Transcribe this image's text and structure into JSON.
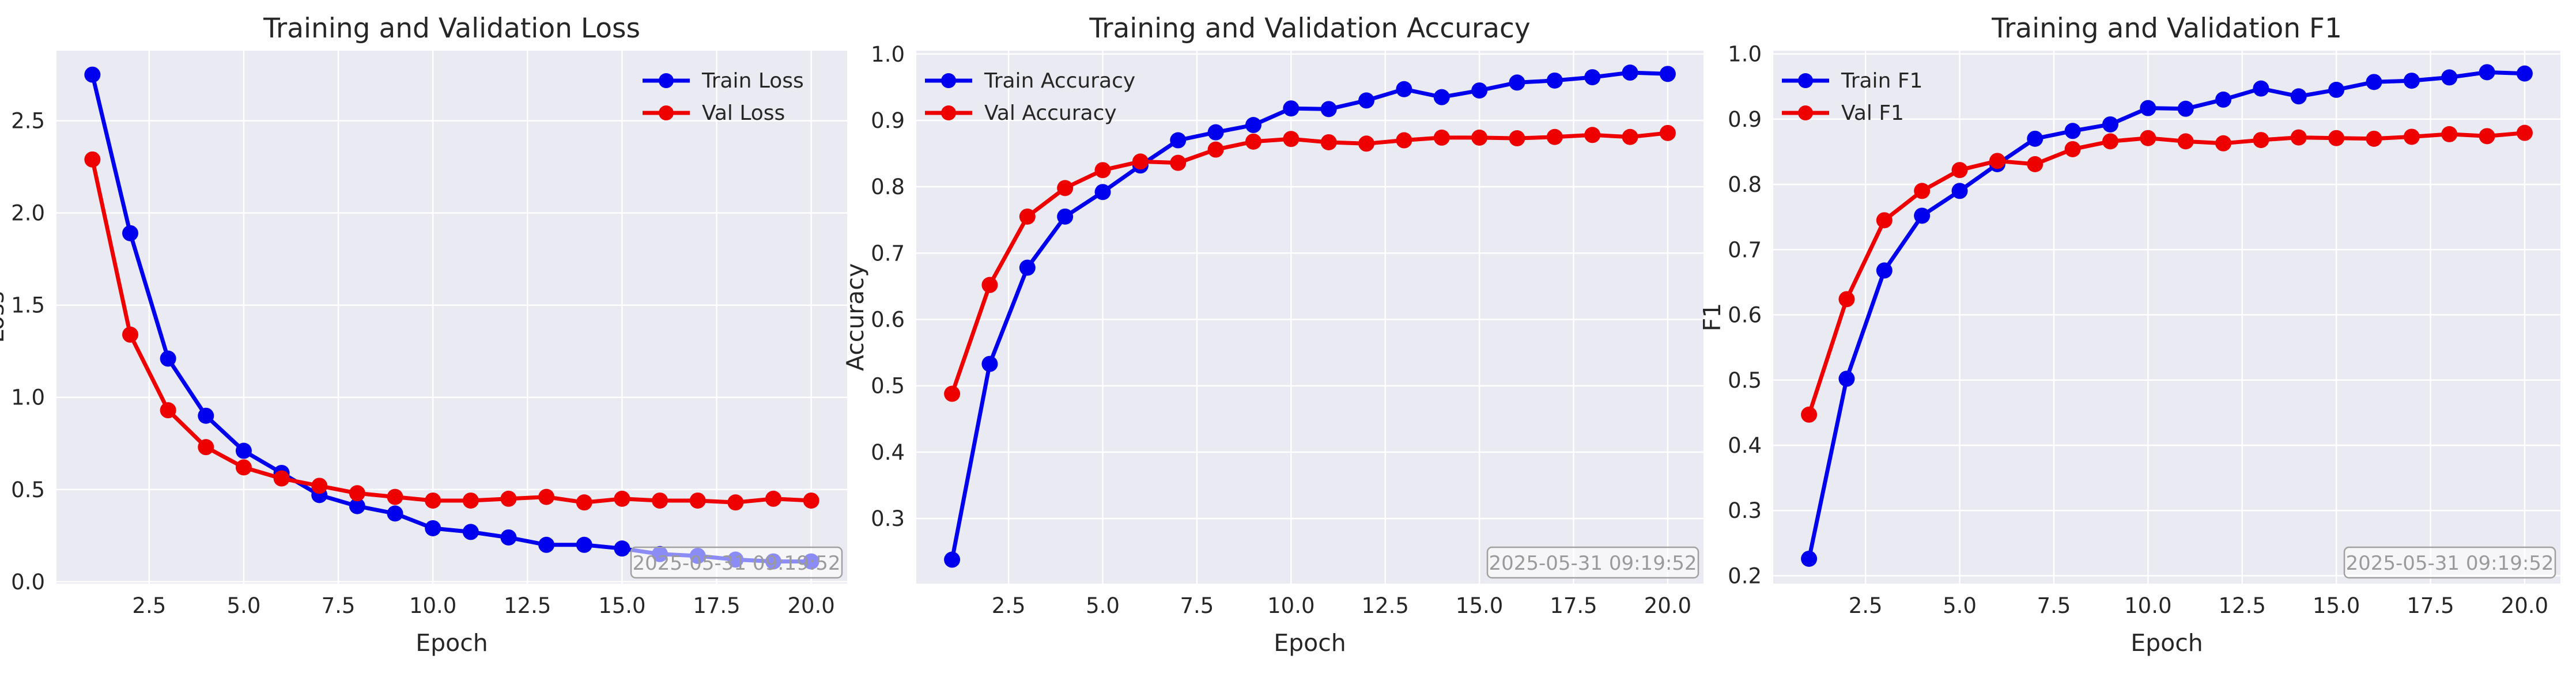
{
  "colors": {
    "train": "#0000ee",
    "val": "#ee0000",
    "panel_bg": "#eaeaf2",
    "grid": "#ffffff"
  },
  "timestamp": "2025-05-31 09:19:52",
  "chart_data": [
    {
      "type": "line",
      "title": "Training and Validation Loss",
      "xlabel": "Epoch",
      "ylabel": "Loss",
      "xlim": [
        0.05,
        20.95
      ],
      "ylim": [
        -0.01,
        2.88
      ],
      "xticks": [
        2.5,
        5.0,
        7.5,
        10.0,
        12.5,
        15.0,
        17.5,
        20.0
      ],
      "yticks": [
        0.0,
        0.5,
        1.0,
        1.5,
        2.0,
        2.5
      ],
      "tick_decimals": 1,
      "grid": true,
      "legend": "top-right",
      "x": [
        1,
        2,
        3,
        4,
        5,
        6,
        7,
        8,
        9,
        10,
        11,
        12,
        13,
        14,
        15,
        16,
        17,
        18,
        19,
        20
      ],
      "series": [
        {
          "name": "Train Loss",
          "color": "#0000ee",
          "values": [
            2.75,
            1.89,
            1.21,
            0.9,
            0.71,
            0.59,
            0.47,
            0.41,
            0.37,
            0.29,
            0.27,
            0.24,
            0.2,
            0.2,
            0.18,
            0.15,
            0.14,
            0.12,
            0.11,
            0.11
          ]
        },
        {
          "name": "Val Loss",
          "color": "#ee0000",
          "values": [
            2.29,
            1.34,
            0.93,
            0.73,
            0.62,
            0.56,
            0.52,
            0.48,
            0.46,
            0.44,
            0.44,
            0.45,
            0.46,
            0.43,
            0.45,
            0.44,
            0.44,
            0.43,
            0.45,
            0.44
          ]
        }
      ]
    },
    {
      "type": "line",
      "title": "Training and Validation Accuracy",
      "xlabel": "Epoch",
      "ylabel": "Accuracy",
      "xlim": [
        0.05,
        20.95
      ],
      "ylim": [
        0.202,
        1.005
      ],
      "xticks": [
        2.5,
        5.0,
        7.5,
        10.0,
        12.5,
        15.0,
        17.5,
        20.0
      ],
      "yticks": [
        0.3,
        0.4,
        0.5,
        0.6,
        0.7,
        0.8,
        0.9,
        1.0
      ],
      "tick_decimals": 1,
      "grid": true,
      "legend": "top-left",
      "x": [
        1,
        2,
        3,
        4,
        5,
        6,
        7,
        8,
        9,
        10,
        11,
        12,
        13,
        14,
        15,
        16,
        17,
        18,
        19,
        20
      ],
      "series": [
        {
          "name": "Train Accuracy",
          "color": "#0000ee",
          "values": [
            0.238,
            0.533,
            0.678,
            0.755,
            0.792,
            0.832,
            0.87,
            0.882,
            0.893,
            0.918,
            0.917,
            0.93,
            0.947,
            0.935,
            0.945,
            0.957,
            0.96,
            0.965,
            0.972,
            0.97
          ]
        },
        {
          "name": "Val Accuracy",
          "color": "#ee0000",
          "values": [
            0.488,
            0.652,
            0.755,
            0.798,
            0.825,
            0.838,
            0.836,
            0.856,
            0.868,
            0.872,
            0.867,
            0.865,
            0.87,
            0.874,
            0.874,
            0.873,
            0.875,
            0.878,
            0.875,
            0.881
          ]
        }
      ]
    },
    {
      "type": "line",
      "title": "Training and Validation F1",
      "xlabel": "Epoch",
      "ylabel": "F1",
      "xlim": [
        0.05,
        20.95
      ],
      "ylim": [
        0.188,
        1.005
      ],
      "xticks": [
        2.5,
        5.0,
        7.5,
        10.0,
        12.5,
        15.0,
        17.5,
        20.0
      ],
      "yticks": [
        0.2,
        0.3,
        0.4,
        0.5,
        0.6,
        0.7,
        0.8,
        0.9,
        1.0
      ],
      "tick_decimals": 1,
      "grid": true,
      "legend": "top-left",
      "x": [
        1,
        2,
        3,
        4,
        5,
        6,
        7,
        8,
        9,
        10,
        11,
        12,
        13,
        14,
        15,
        16,
        17,
        18,
        19,
        20
      ],
      "series": [
        {
          "name": "Train F1",
          "color": "#0000ee",
          "values": [
            0.226,
            0.502,
            0.668,
            0.752,
            0.79,
            0.831,
            0.87,
            0.882,
            0.892,
            0.917,
            0.916,
            0.93,
            0.947,
            0.935,
            0.945,
            0.957,
            0.959,
            0.964,
            0.972,
            0.97
          ]
        },
        {
          "name": "Val F1",
          "color": "#ee0000",
          "values": [
            0.447,
            0.624,
            0.745,
            0.79,
            0.822,
            0.836,
            0.831,
            0.854,
            0.866,
            0.871,
            0.866,
            0.863,
            0.868,
            0.872,
            0.871,
            0.87,
            0.873,
            0.877,
            0.874,
            0.879
          ]
        }
      ]
    }
  ]
}
